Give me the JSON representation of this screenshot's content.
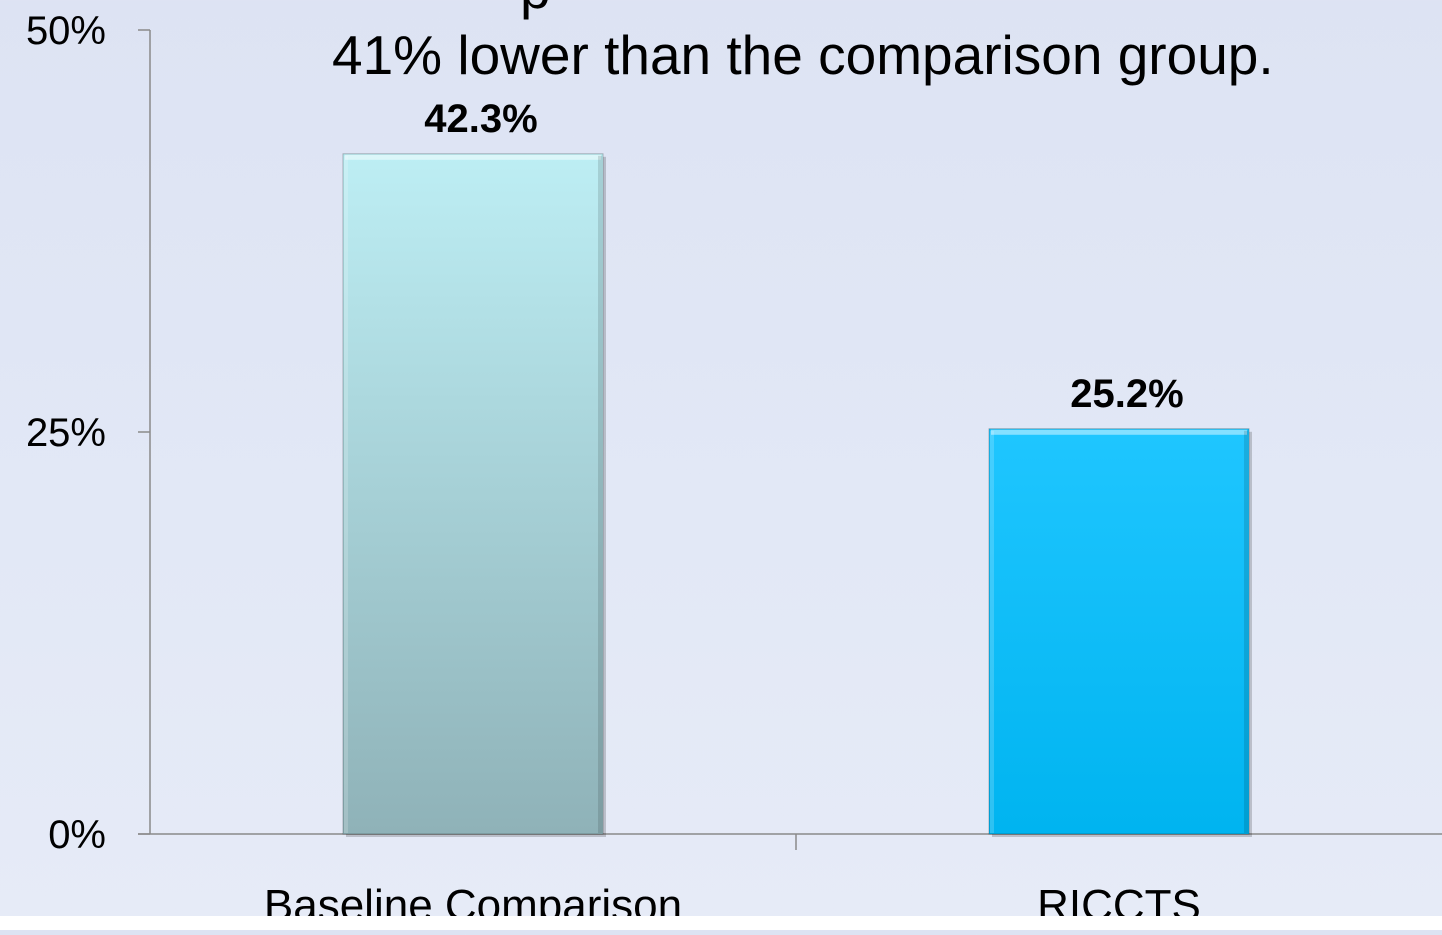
{
  "slide": {
    "headline_line_partial": "p",
    "headline_line": "41% lower than the comparison group."
  },
  "chart_data": {
    "type": "bar",
    "categories": [
      "Baseline Comparison",
      "RICCTS"
    ],
    "values": [
      42.3,
      25.2
    ],
    "data_labels": [
      "42.3%",
      "25.2%"
    ],
    "y_ticks": [
      {
        "value": 0,
        "label": "0%"
      },
      {
        "value": 25,
        "label": "25%"
      },
      {
        "value": 50,
        "label": "50%"
      }
    ],
    "ylim": [
      0,
      50
    ],
    "grid": false,
    "legend": "none",
    "colors": {
      "bar_1_top": "#bdeef4",
      "bar_1_bottom": "#8fb2b8",
      "bar_2_top": "#1fc6ff",
      "bar_2_bottom": "#00b4f0",
      "axis": "#8a8a8a",
      "text": "#000000"
    }
  }
}
